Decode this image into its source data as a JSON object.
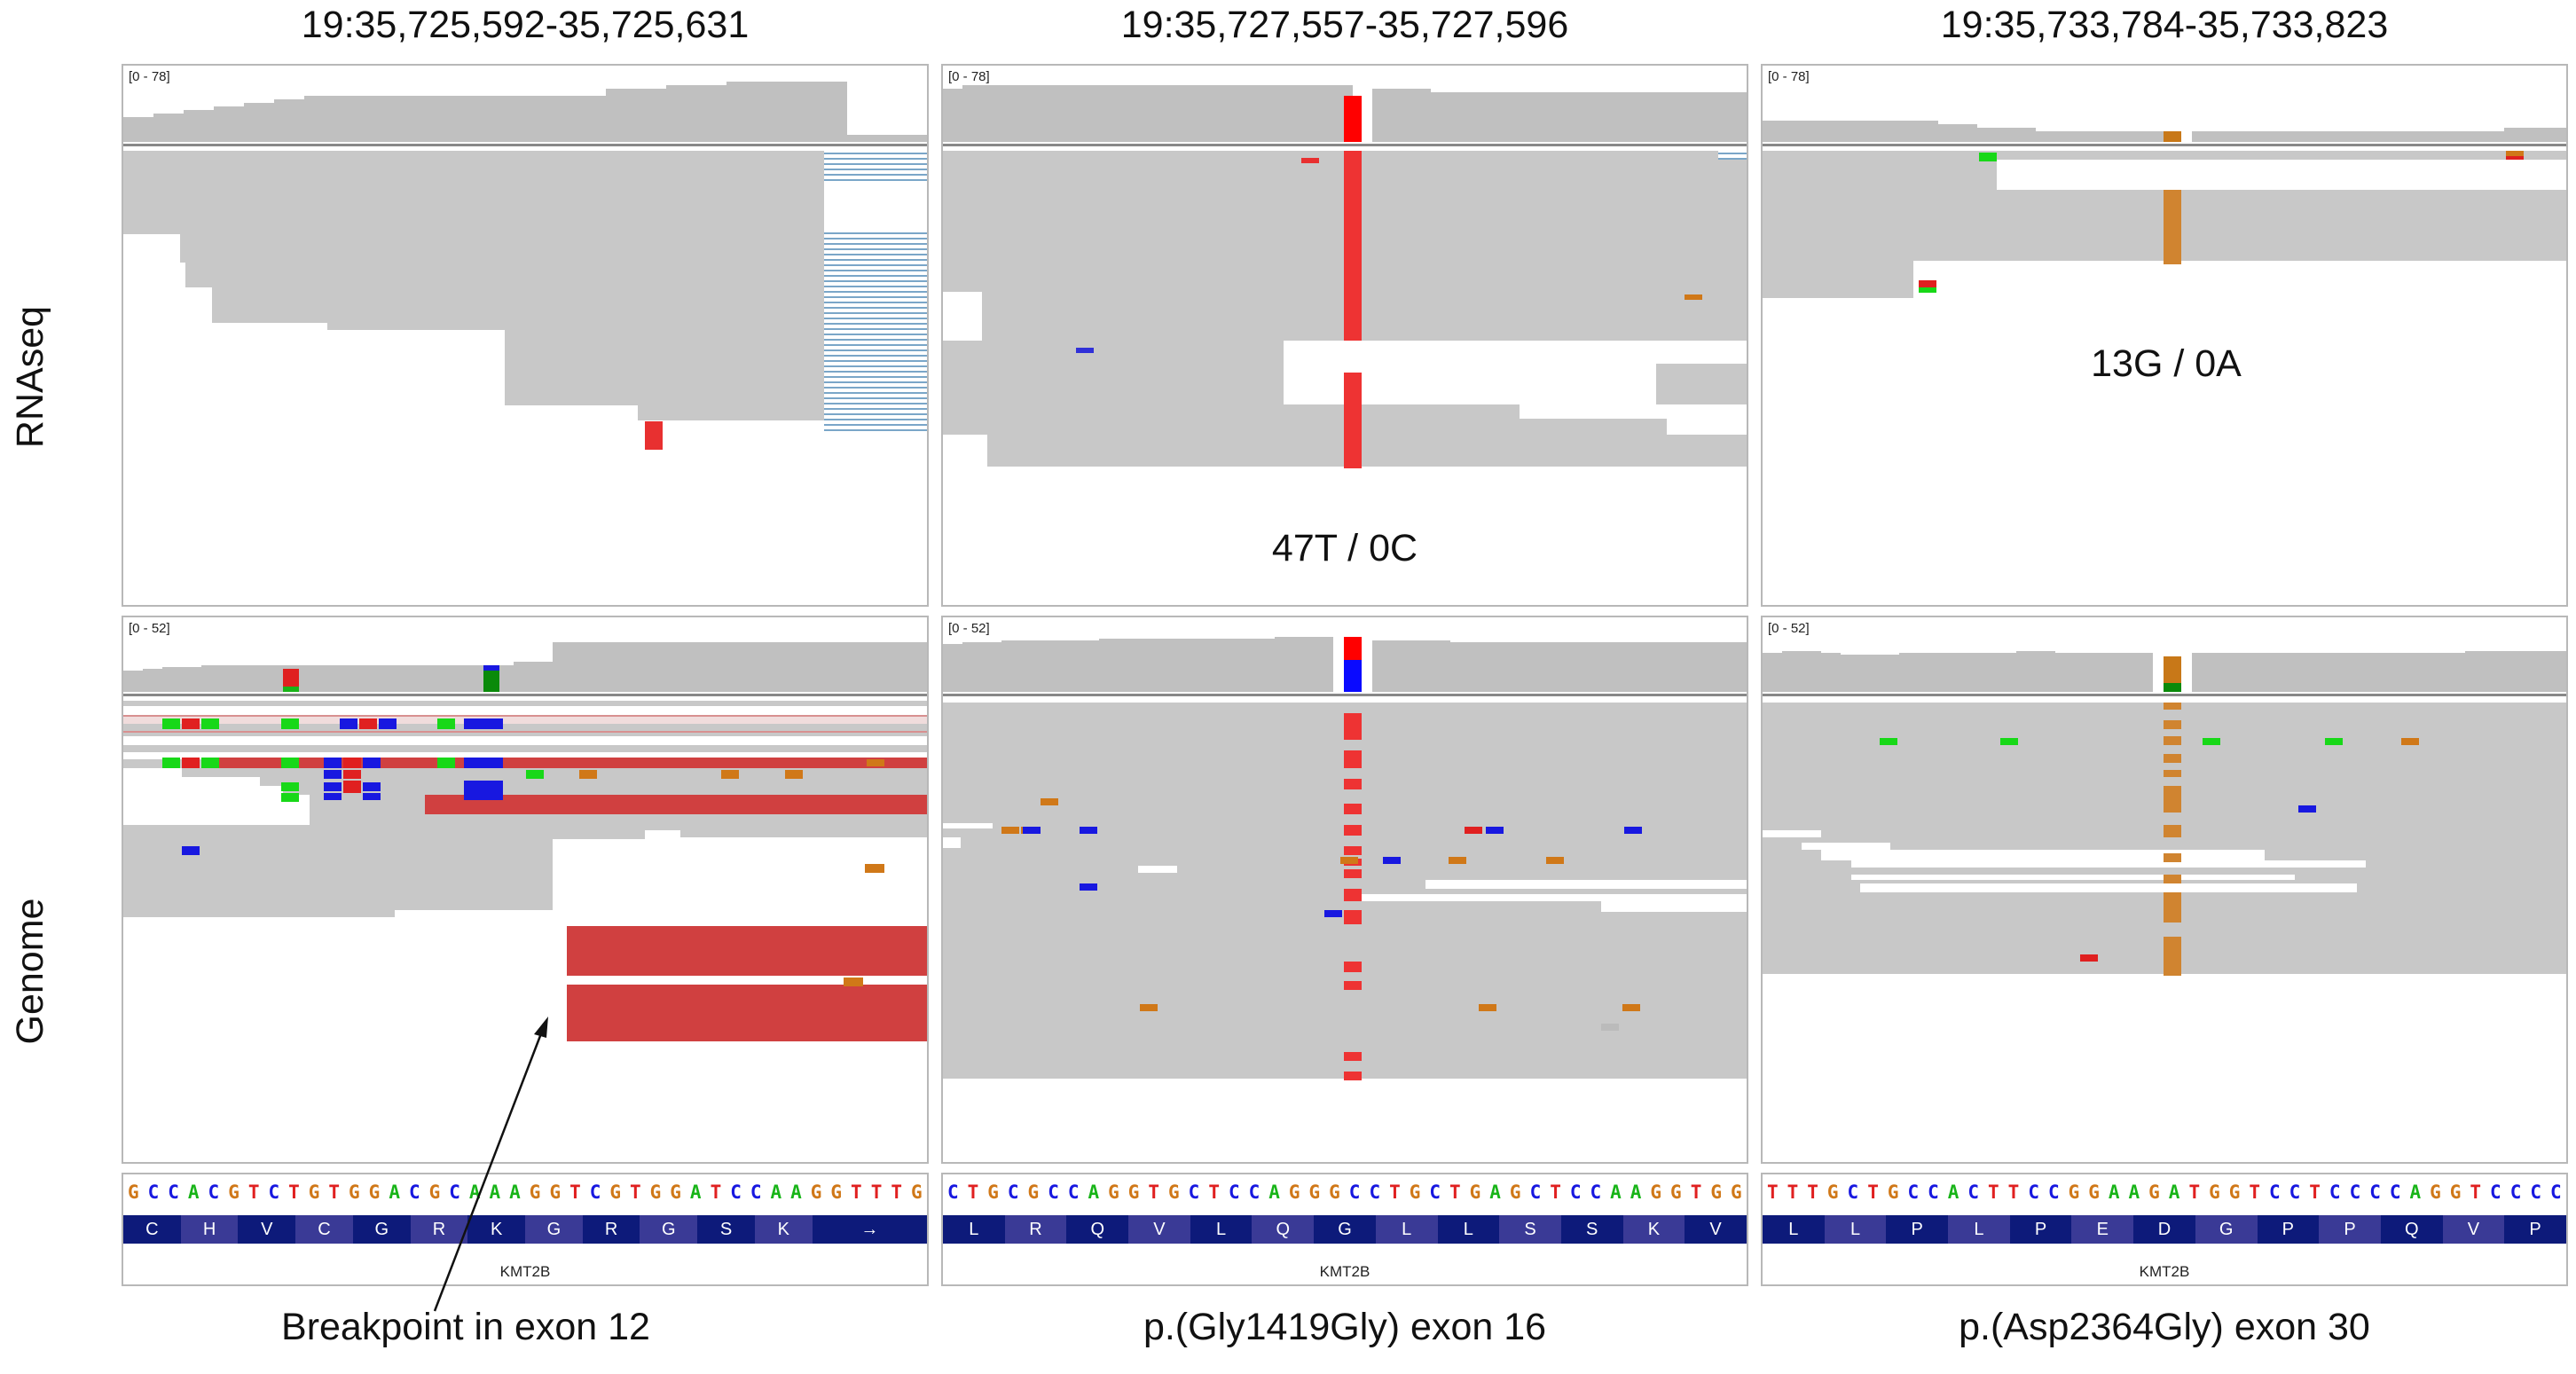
{
  "columns": [
    {
      "title": "19:35,725,592-35,725,631",
      "rna_range": "[0 - 78]",
      "dna_range": "[0 - 52]",
      "rna_annotation": "",
      "sequence": "GCCACGTCTGTGGACGCAAAGGTCGTGGATCCAAGGTTTG",
      "amino_acids": [
        "C",
        "H",
        "V",
        "C",
        "G",
        "R",
        "K",
        "G",
        "R",
        "G",
        "S",
        "K"
      ],
      "arrow_glyph": "→",
      "gene": "KMT2B",
      "caption": "Breakpoint in exon 12"
    },
    {
      "title": "19:35,727,557-35,727,596",
      "rna_range": "[0 - 78]",
      "dna_range": "[0 - 52]",
      "rna_annotation": "47T / 0C",
      "sequence": "CTGCGCCAGGTGCTCCAGGGCCTGCTGAGCTCCAAGGTGG",
      "amino_acids": [
        "L",
        "R",
        "Q",
        "V",
        "L",
        "Q",
        "G",
        "L",
        "L",
        "S",
        "S",
        "K",
        "V"
      ],
      "arrow_glyph": "",
      "gene": "KMT2B",
      "caption": "p.(Gly1419Gly) exon 16"
    },
    {
      "title": "19:35,733,784-35,733,823",
      "rna_range": "[0 - 78]",
      "dna_range": "[0 - 52]",
      "rna_annotation": "13G / 0A",
      "sequence": "TTTGCTGCCACTTCCGGAAGATGGTCCTCCCCAGGTCCCC",
      "amino_acids": [
        "L",
        "L",
        "P",
        "L",
        "P",
        "E",
        "D",
        "G",
        "P",
        "P",
        "Q",
        "V",
        "P"
      ],
      "arrow_glyph": "",
      "gene": "KMT2B",
      "caption": "p.(Asp2364Gly) exon 30"
    }
  ],
  "row_labels": {
    "rnaseq": "RNAseq",
    "genome": "Genome"
  },
  "colors": {
    "read_gray": "#c8c8c8",
    "coverage_gray": "#c0c0c0",
    "base_A": "#18b418",
    "base_C": "#1818e0",
    "base_G": "#d07818",
    "base_T": "#e02020",
    "amino_bar": "#0d1a7a",
    "discordant_red": "#d04040",
    "splice_blue": "#7aa6c8"
  }
}
